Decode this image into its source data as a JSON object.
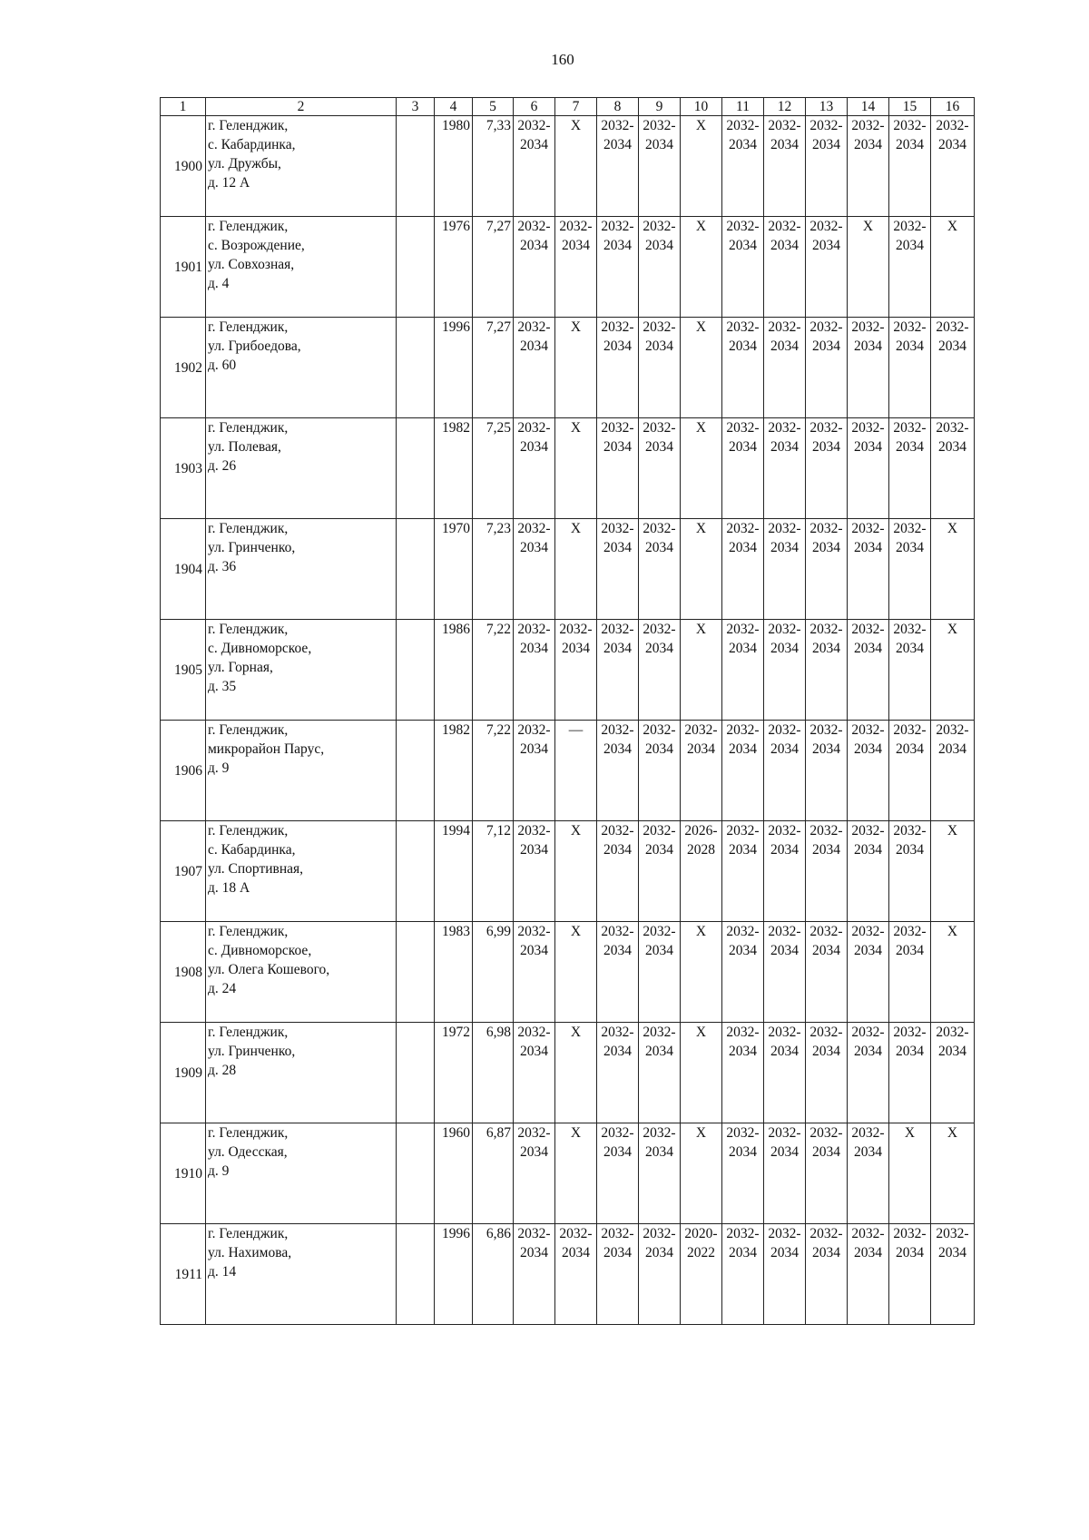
{
  "page_number": "160",
  "headers": [
    "1",
    "2",
    "3",
    "4",
    "5",
    "6",
    "7",
    "8",
    "9",
    "10",
    "11",
    "12",
    "13",
    "14",
    "15",
    "16"
  ],
  "rows": [
    {
      "num": "1900",
      "address": "г. Геленджик,\nс. Кабардинка,\nул. Дружбы,\nд. 12 А",
      "c3": "",
      "c4": "1980",
      "c5": "7,33",
      "c6": "2032- 2034",
      "c7": "Х",
      "c8": "2032- 2034",
      "c9": "2032- 2034",
      "c10": "Х",
      "c11": "2032- 2034",
      "c12": "2032- 2034",
      "c13": "2032- 2034",
      "c14": "2032- 2034",
      "c15": "2032- 2034",
      "c16": "2032- 2034"
    },
    {
      "num": "1901",
      "address": "г. Геленджик,\nс. Возрождение,\nул. Совхозная,\nд. 4",
      "c3": "",
      "c4": "1976",
      "c5": "7,27",
      "c6": "2032- 2034",
      "c7": "2032- 2034",
      "c8": "2032- 2034",
      "c9": "2032- 2034",
      "c10": "Х",
      "c11": "2032- 2034",
      "c12": "2032- 2034",
      "c13": "2032- 2034",
      "c14": "Х",
      "c15": "2032- 2034",
      "c16": "Х"
    },
    {
      "num": "1902",
      "address": "г. Геленджик,\nул. Грибоедова,\nд. 60",
      "c3": "",
      "c4": "1996",
      "c5": "7,27",
      "c6": "2032- 2034",
      "c7": "Х",
      "c8": "2032- 2034",
      "c9": "2032- 2034",
      "c10": "Х",
      "c11": "2032- 2034",
      "c12": "2032- 2034",
      "c13": "2032- 2034",
      "c14": "2032- 2034",
      "c15": "2032- 2034",
      "c16": "2032- 2034"
    },
    {
      "num": "1903",
      "address": "г. Геленджик,\nул. Полевая,\nд. 26",
      "c3": "",
      "c4": "1982",
      "c5": "7,25",
      "c6": "2032- 2034",
      "c7": "Х",
      "c8": "2032- 2034",
      "c9": "2032- 2034",
      "c10": "Х",
      "c11": "2032- 2034",
      "c12": "2032- 2034",
      "c13": "2032- 2034",
      "c14": "2032- 2034",
      "c15": "2032- 2034",
      "c16": "2032- 2034"
    },
    {
      "num": "1904",
      "address": "г. Геленджик,\nул. Гринченко,\nд. 36",
      "c3": "",
      "c4": "1970",
      "c5": "7,23",
      "c6": "2032- 2034",
      "c7": "Х",
      "c8": "2032- 2034",
      "c9": "2032- 2034",
      "c10": "Х",
      "c11": "2032- 2034",
      "c12": "2032- 2034",
      "c13": "2032- 2034",
      "c14": "2032- 2034",
      "c15": "2032- 2034",
      "c16": "Х"
    },
    {
      "num": "1905",
      "address": "г. Геленджик,\nс. Дивноморское,\nул. Горная,\nд. 35",
      "c3": "",
      "c4": "1986",
      "c5": "7,22",
      "c6": "2032- 2034",
      "c7": "2032- 2034",
      "c8": "2032- 2034",
      "c9": "2032- 2034",
      "c10": "Х",
      "c11": "2032- 2034",
      "c12": "2032- 2034",
      "c13": "2032- 2034",
      "c14": "2032- 2034",
      "c15": "2032- 2034",
      "c16": "Х"
    },
    {
      "num": "1906",
      "address": "г. Геленджик,\nмикрорайон Парус,\nд. 9",
      "c3": "",
      "c4": "1982",
      "c5": "7,22",
      "c6": "2032- 2034",
      "c7": "—",
      "c8": "2032- 2034",
      "c9": "2032- 2034",
      "c10": "2032- 2034",
      "c11": "2032- 2034",
      "c12": "2032- 2034",
      "c13": "2032- 2034",
      "c14": "2032- 2034",
      "c15": "2032- 2034",
      "c16": "2032- 2034"
    },
    {
      "num": "1907",
      "address": "г. Геленджик,\nс. Кабардинка,\nул. Спортивная,\nд. 18 А",
      "c3": "",
      "c4": "1994",
      "c5": "7,12",
      "c6": "2032- 2034",
      "c7": "Х",
      "c8": "2032- 2034",
      "c9": "2032- 2034",
      "c10": "2026- 2028",
      "c11": "2032- 2034",
      "c12": "2032- 2034",
      "c13": "2032- 2034",
      "c14": "2032- 2034",
      "c15": "2032- 2034",
      "c16": "Х"
    },
    {
      "num": "1908",
      "address": "г. Геленджик,\nс. Дивноморское,\nул. Олега Кошевого,\nд. 24",
      "c3": "",
      "c4": "1983",
      "c5": "6,99",
      "c6": "2032- 2034",
      "c7": "Х",
      "c8": "2032- 2034",
      "c9": "2032- 2034",
      "c10": "Х",
      "c11": "2032- 2034",
      "c12": "2032- 2034",
      "c13": "2032- 2034",
      "c14": "2032- 2034",
      "c15": "2032- 2034",
      "c16": "Х"
    },
    {
      "num": "1909",
      "address": "г. Геленджик,\nул. Гринченко,\nд. 28",
      "c3": "",
      "c4": "1972",
      "c5": "6,98",
      "c6": "2032- 2034",
      "c7": "Х",
      "c8": "2032- 2034",
      "c9": "2032- 2034",
      "c10": "Х",
      "c11": "2032- 2034",
      "c12": "2032- 2034",
      "c13": "2032- 2034",
      "c14": "2032- 2034",
      "c15": "2032- 2034",
      "c16": "2032- 2034"
    },
    {
      "num": "1910",
      "address": "г. Геленджик,\nул. Одесская,\nд. 9",
      "c3": "",
      "c4": "1960",
      "c5": "6,87",
      "c6": "2032- 2034",
      "c7": "Х",
      "c8": "2032- 2034",
      "c9": "2032- 2034",
      "c10": "Х",
      "c11": "2032- 2034",
      "c12": "2032- 2034",
      "c13": "2032- 2034",
      "c14": "2032- 2034",
      "c15": "Х",
      "c16": "Х"
    },
    {
      "num": "1911",
      "address": "г. Геленджик,\nул. Нахимова,\nд. 14",
      "c3": "",
      "c4": "1996",
      "c5": "6,86",
      "c6": "2032- 2034",
      "c7": "2032- 2034",
      "c8": "2032- 2034",
      "c9": "2032- 2034",
      "c10": "2020- 2022",
      "c11": "2032- 2034",
      "c12": "2032- 2034",
      "c13": "2032- 2034",
      "c14": "2032- 2034",
      "c15": "2032- 2034",
      "c16": "2032- 2034"
    }
  ]
}
